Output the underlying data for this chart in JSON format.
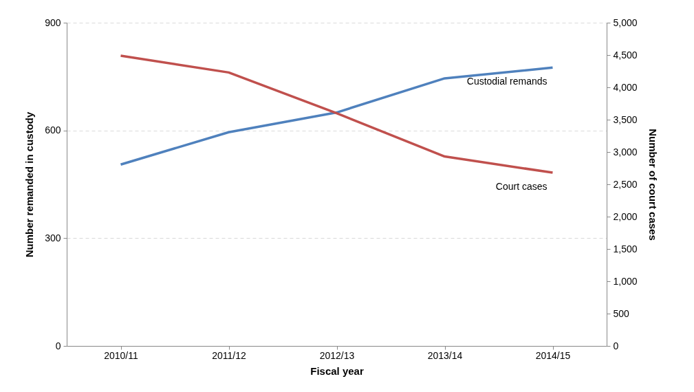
{
  "chart_data": {
    "type": "line",
    "xlabel": "Fiscal year",
    "ylabel": "Number remanded in custody",
    "y2label": "Number of court cases",
    "categories": [
      "2010/11",
      "2011/12",
      "2012/13",
      "2013/14",
      "2014/15"
    ],
    "series": [
      {
        "name": "Custodial remands",
        "color": "#4f81bd",
        "values": [
          505,
          595,
          650,
          745,
          775
        ]
      },
      {
        "name": "Court cases",
        "color": "#c0504d",
        "axis": "y2",
        "values": [
          4490,
          4230,
          3600,
          2930,
          2680
        ]
      }
    ],
    "ylim": [
      0,
      900
    ],
    "yticks": [
      0,
      300,
      600,
      900
    ],
    "y2lim": [
      0,
      5000
    ],
    "y2ticks": [
      0,
      500,
      {
        "value": 1000,
        "label": "1,000"
      },
      {
        "value": 1500,
        "label": "1,500"
      },
      {
        "value": 2000,
        "label": "2,000"
      },
      {
        "value": 2500,
        "label": "2,500"
      },
      {
        "value": 3000,
        "label": "3,000"
      },
      {
        "value": 3500,
        "label": "3,500"
      },
      {
        "value": 4000,
        "label": "4,000"
      },
      {
        "value": 4500,
        "label": "4,500"
      },
      {
        "value": 5000,
        "label": "5,000"
      }
    ],
    "grid": "y"
  }
}
